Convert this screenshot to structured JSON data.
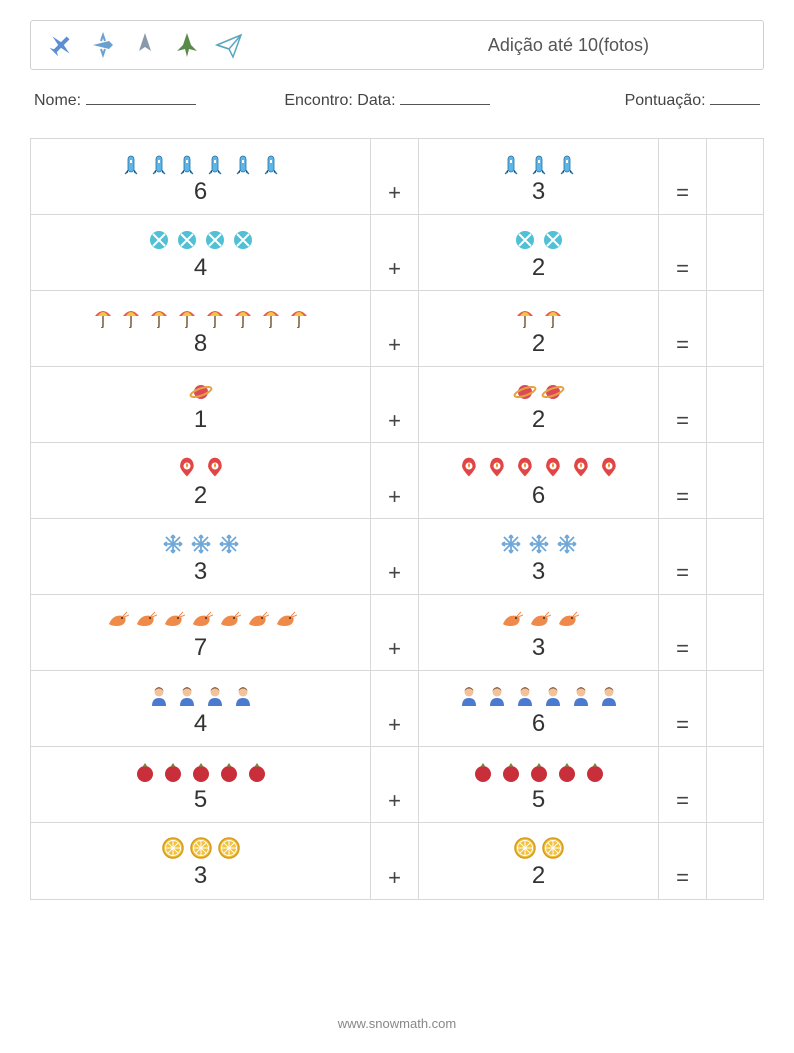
{
  "title": "Adição até 10(fotos)",
  "labels": {
    "name": "Nome:",
    "encounter": "Encontro: Data:",
    "score": "Pontuação:"
  },
  "blanks": {
    "name_w": 110,
    "date_w": 90,
    "score_w": 50
  },
  "operator": "+",
  "equals": "=",
  "footer": "www.snowmath.com",
  "colors": {
    "border": "#d8d8d8",
    "text": "#333333",
    "title": "#555555"
  },
  "header_icons": [
    "plane-blue",
    "plane-small",
    "jet-gray",
    "jet-green",
    "paper-plane"
  ],
  "problems": [
    {
      "icon": "rocket-blue",
      "a": 6,
      "b": 3
    },
    {
      "icon": "disc-cyan",
      "a": 4,
      "b": 2
    },
    {
      "icon": "umbrella",
      "a": 8,
      "b": 2
    },
    {
      "icon": "planet",
      "a": 1,
      "b": 2
    },
    {
      "icon": "pin-fire",
      "a": 2,
      "b": 6
    },
    {
      "icon": "snowflake",
      "a": 3,
      "b": 3
    },
    {
      "icon": "shrimp",
      "a": 7,
      "b": 3
    },
    {
      "icon": "person-blue",
      "a": 4,
      "b": 6
    },
    {
      "icon": "pomegranate",
      "a": 5,
      "b": 5
    },
    {
      "icon": "lemon-slice",
      "a": 3,
      "b": 2
    }
  ],
  "icon_style": {
    "rocket-blue": {
      "fill": "#5cb7e6",
      "stroke": "#2a6fa0"
    },
    "disc-cyan": {
      "fill": "#4fc0d6",
      "stroke": "#ffffff"
    },
    "umbrella": {
      "fill": "#e85b4a",
      "alt": "#f5c544"
    },
    "planet": {
      "fill": "#d94b5b",
      "ring": "#e8a23d"
    },
    "pin-fire": {
      "fill": "#e24545",
      "inner": "#ffffff"
    },
    "snowflake": {
      "fill": "#6fa8d8"
    },
    "shrimp": {
      "fill": "#f08a4b"
    },
    "person-blue": {
      "fill": "#4a7bd1",
      "hair": "#8a5a3a"
    },
    "pomegranate": {
      "fill": "#c92f3a"
    },
    "lemon-slice": {
      "fill": "#f2c23e",
      "stroke": "#d89a1a"
    }
  }
}
